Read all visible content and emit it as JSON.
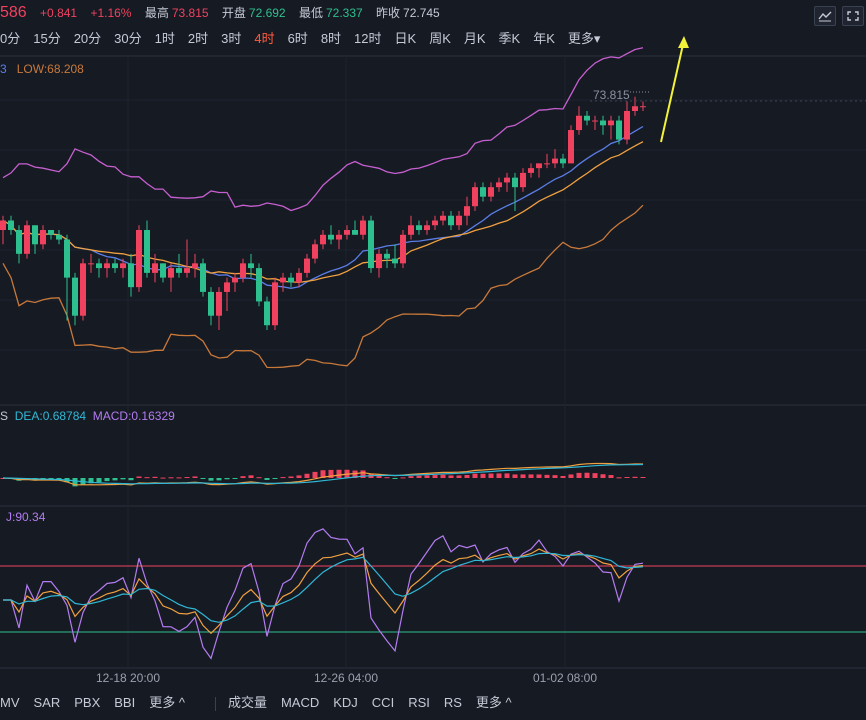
{
  "quote": {
    "price": "586",
    "change": "+0.841",
    "change_pct": "+1.16%",
    "high_label": "最高",
    "high": "73.815",
    "open_label": "开盘",
    "open": "72.692",
    "low_label": "最低",
    "low": "72.337",
    "prev_label": "昨收",
    "prev": "72.745"
  },
  "periods": [
    "0分",
    "15分",
    "20分",
    "30分",
    "1时",
    "2时",
    "3时",
    "4时",
    "6时",
    "8时",
    "12时",
    "日K",
    "周K",
    "月K",
    "季K",
    "年K",
    "更多▾"
  ],
  "active_period": "4时",
  "main_legend": {
    "left_cut": "3",
    "low": "LOW:68.208"
  },
  "macd_legend": {
    "left_cut": "S",
    "dea": "DEA:0.68784",
    "macd": "MACD:0.16329"
  },
  "kdj_legend": {
    "j": "J:90.34"
  },
  "bottom_left": [
    "MV",
    "SAR",
    "PBX",
    "BBI",
    "更多 ^"
  ],
  "bottom_right": [
    "成交量",
    "MACD",
    "KDJ",
    "CCI",
    "RSI",
    "RS",
    "更多 ^"
  ],
  "colors": {
    "up": "#f0425f",
    "down": "#2dc08e",
    "upper": "#c65fd0",
    "mid": "#5b7ee8",
    "ma": "#f0a040",
    "lower": "#c8793a",
    "dif": "#f0a040",
    "dea": "#30b8d6",
    "j": "#b37cf0",
    "k": "#f0a040",
    "d": "#30b8d6"
  },
  "chart_data": {
    "type": "candlestick",
    "price_label": "73.815",
    "x_ticks": [
      "12-18 20:00",
      "12-26 04:00",
      "01-02 08:00"
    ],
    "candles": [
      [
        71.0,
        71.3,
        70.7,
        71.2
      ],
      [
        71.2,
        71.3,
        70.9,
        71.0
      ],
      [
        71.0,
        71.1,
        70.3,
        70.5
      ],
      [
        70.5,
        71.2,
        70.4,
        71.1
      ],
      [
        71.1,
        71.1,
        70.5,
        70.7
      ],
      [
        70.7,
        71.1,
        70.6,
        71.0
      ],
      [
        71.0,
        71.0,
        70.8,
        70.9
      ],
      [
        70.9,
        71.0,
        70.7,
        70.8
      ],
      [
        70.8,
        70.9,
        69.1,
        70.0
      ],
      [
        70.0,
        70.1,
        69.0,
        69.2
      ],
      [
        69.2,
        70.4,
        69.1,
        70.3
      ],
      [
        70.3,
        70.5,
        70.1,
        70.3
      ],
      [
        70.3,
        70.4,
        70.0,
        70.2
      ],
      [
        70.2,
        70.4,
        70.0,
        70.3
      ],
      [
        70.3,
        70.4,
        70.1,
        70.2
      ],
      [
        70.2,
        70.4,
        70.0,
        70.3
      ],
      [
        70.3,
        70.5,
        69.6,
        69.8
      ],
      [
        69.8,
        71.1,
        69.7,
        71.0
      ],
      [
        71.0,
        71.2,
        70.0,
        70.1
      ],
      [
        70.1,
        70.5,
        69.9,
        70.3
      ],
      [
        70.3,
        70.3,
        69.9,
        70.0
      ],
      [
        70.0,
        70.3,
        69.7,
        70.2
      ],
      [
        70.2,
        70.5,
        70.0,
        70.1
      ],
      [
        70.1,
        70.8,
        70.0,
        70.2
      ],
      [
        70.2,
        70.5,
        70.0,
        70.3
      ],
      [
        70.3,
        70.4,
        69.6,
        69.7
      ],
      [
        69.7,
        69.8,
        69.0,
        69.2
      ],
      [
        69.2,
        69.8,
        68.9,
        69.7
      ],
      [
        69.7,
        70.0,
        69.3,
        69.9
      ],
      [
        69.9,
        70.1,
        69.7,
        70.0
      ],
      [
        70.0,
        70.4,
        69.9,
        70.3
      ],
      [
        70.3,
        70.5,
        70.0,
        70.2
      ],
      [
        70.2,
        70.3,
        69.4,
        69.5
      ],
      [
        69.5,
        69.6,
        68.9,
        69.0
      ],
      [
        69.0,
        70.0,
        68.9,
        69.9
      ],
      [
        69.9,
        70.1,
        69.7,
        70.0
      ],
      [
        70.0,
        70.1,
        69.8,
        69.9
      ],
      [
        69.9,
        70.2,
        69.8,
        70.1
      ],
      [
        70.1,
        70.5,
        70.0,
        70.4
      ],
      [
        70.4,
        70.8,
        70.3,
        70.7
      ],
      [
        70.7,
        71.0,
        70.6,
        70.9
      ],
      [
        70.9,
        71.1,
        70.7,
        70.8
      ],
      [
        70.8,
        71.0,
        70.6,
        70.9
      ],
      [
        70.9,
        71.1,
        70.8,
        71.0
      ],
      [
        71.0,
        71.2,
        70.9,
        70.9
      ],
      [
        70.9,
        71.3,
        70.8,
        71.2
      ],
      [
        71.2,
        71.3,
        70.1,
        70.2
      ],
      [
        70.2,
        70.6,
        70.0,
        70.5
      ],
      [
        70.5,
        70.6,
        70.2,
        70.4
      ],
      [
        70.4,
        70.7,
        70.2,
        70.3
      ],
      [
        70.3,
        71.0,
        70.2,
        70.9
      ],
      [
        70.9,
        71.3,
        70.8,
        71.1
      ],
      [
        71.1,
        71.2,
        70.9,
        71.0
      ],
      [
        71.0,
        71.2,
        70.9,
        71.1
      ],
      [
        71.1,
        71.3,
        71.0,
        71.2
      ],
      [
        71.2,
        71.4,
        71.1,
        71.3
      ],
      [
        71.3,
        71.4,
        71.0,
        71.1
      ],
      [
        71.1,
        71.4,
        71.0,
        71.3
      ],
      [
        71.3,
        71.7,
        71.1,
        71.5
      ],
      [
        71.5,
        72.0,
        71.4,
        71.9
      ],
      [
        71.9,
        72.0,
        71.6,
        71.7
      ],
      [
        71.7,
        72.0,
        71.6,
        71.9
      ],
      [
        71.9,
        72.1,
        71.8,
        72.0
      ],
      [
        72.0,
        72.2,
        71.8,
        72.1
      ],
      [
        72.1,
        72.2,
        71.4,
        71.9
      ],
      [
        71.9,
        72.3,
        71.8,
        72.2
      ],
      [
        72.2,
        72.4,
        72.1,
        72.3
      ],
      [
        72.3,
        72.4,
        72.1,
        72.4
      ],
      [
        72.4,
        72.6,
        72.3,
        72.4
      ],
      [
        72.4,
        72.7,
        72.3,
        72.5
      ],
      [
        72.5,
        72.6,
        72.3,
        72.4
      ],
      [
        72.4,
        73.2,
        72.4,
        73.1
      ],
      [
        73.1,
        73.6,
        73.0,
        73.4
      ],
      [
        73.4,
        73.5,
        73.2,
        73.3
      ],
      [
        73.3,
        73.4,
        73.1,
        73.3
      ],
      [
        73.3,
        73.4,
        73.0,
        73.2
      ],
      [
        73.2,
        73.4,
        72.9,
        73.3
      ],
      [
        73.3,
        73.4,
        72.8,
        72.9
      ],
      [
        72.9,
        73.7,
        72.8,
        73.5
      ],
      [
        73.5,
        73.8,
        73.4,
        73.6
      ],
      [
        73.6,
        73.7,
        73.5,
        73.6
      ]
    ]
  }
}
